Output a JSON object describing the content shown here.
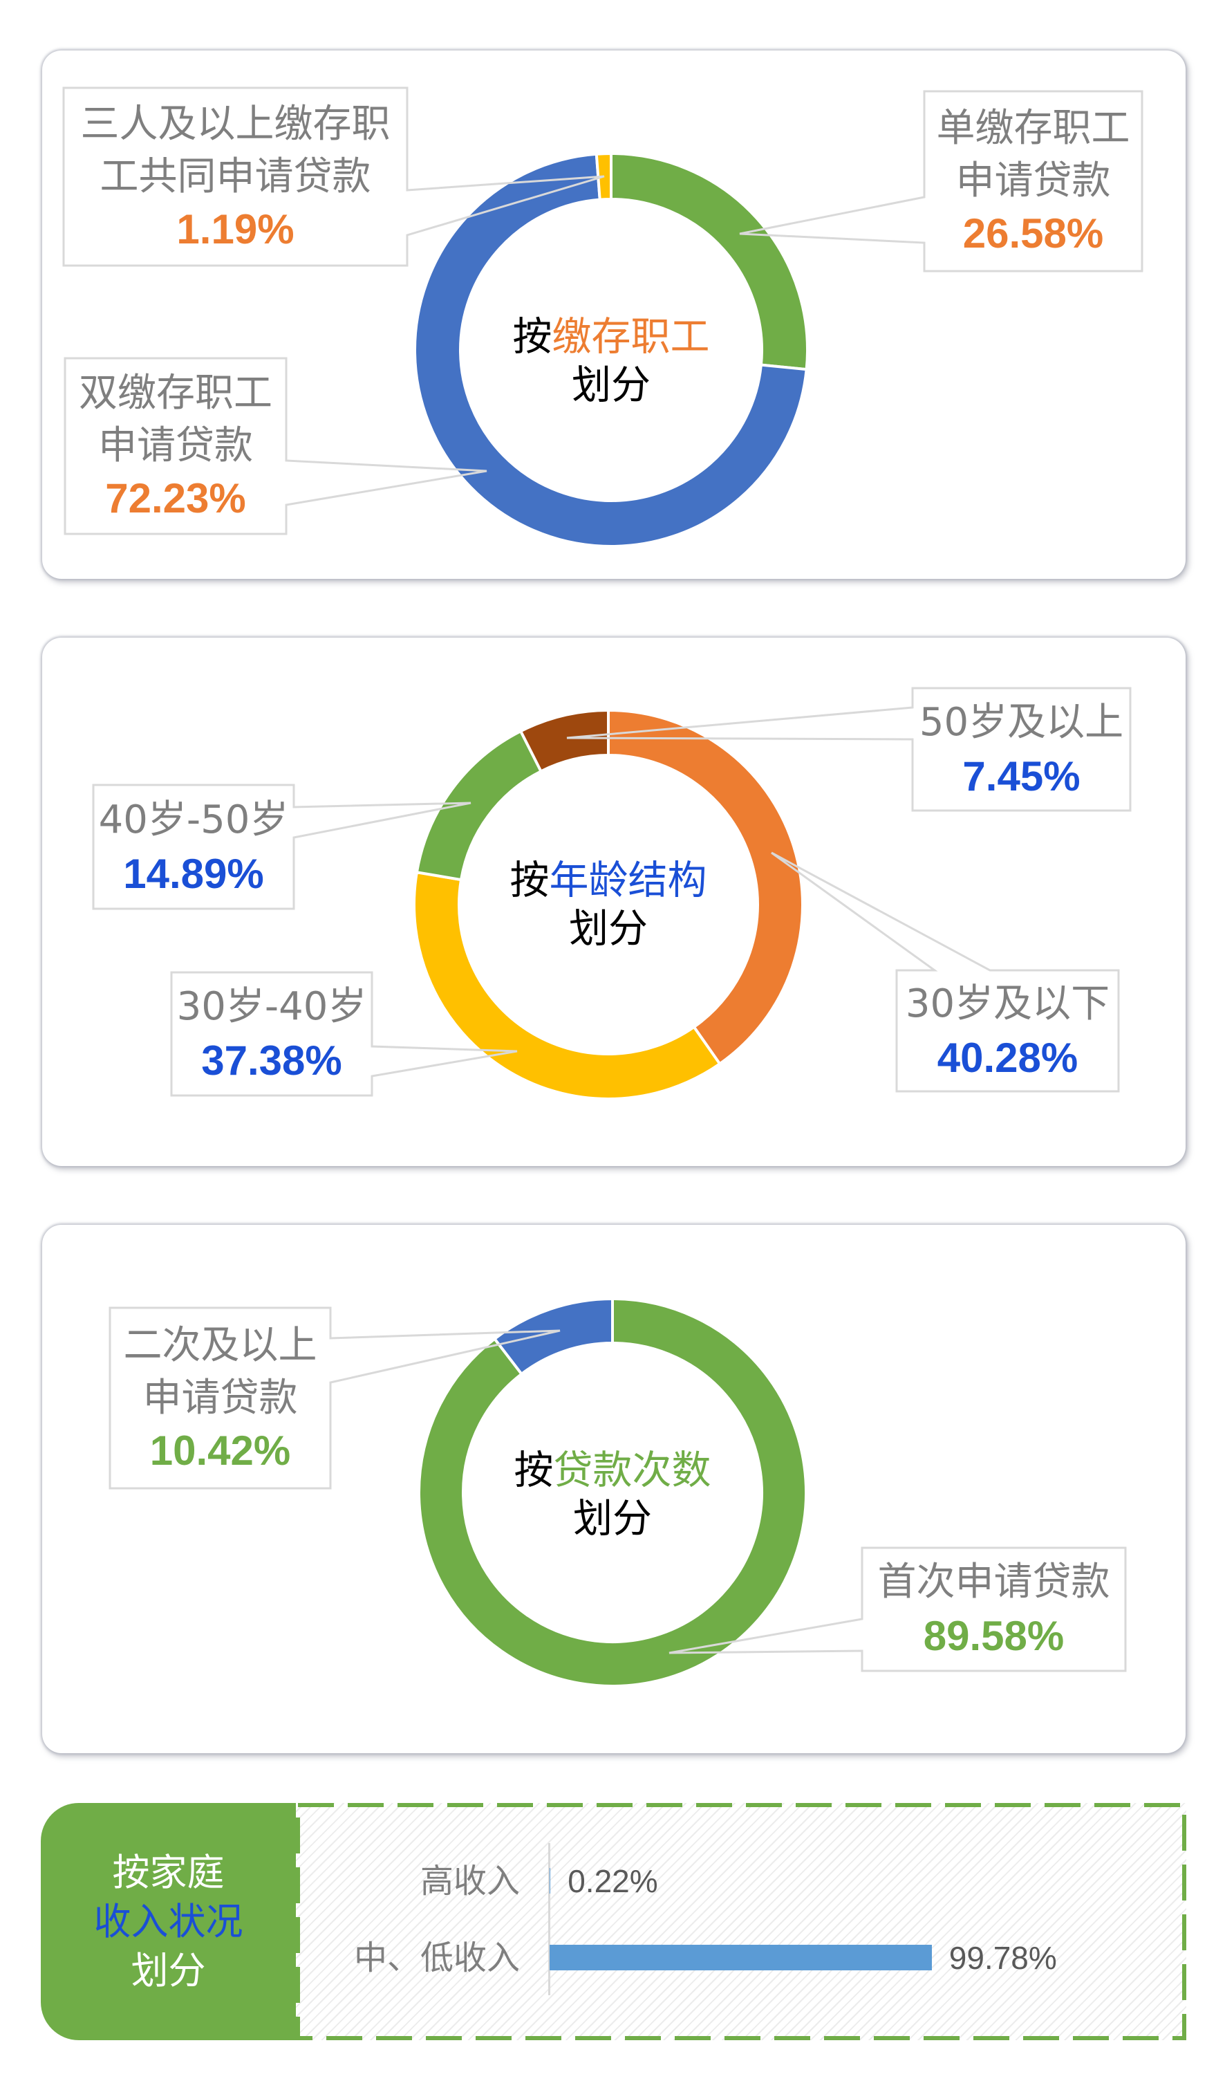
{
  "chart_data": [
    {
      "type": "pie",
      "variant": "donut",
      "title": "按缴存职工划分",
      "title_parts": [
        "按",
        "缴存职工",
        "划分"
      ],
      "categories": [
        "单缴存职工申请贷款",
        "双缴存职工申请贷款",
        "三人及以上缴存职工共同申请贷款"
      ],
      "label_lines": [
        [
          "单缴存职工",
          "申请贷款"
        ],
        [
          "双缴存职工",
          "申请贷款"
        ],
        [
          "三人及以上缴存职",
          "工共同申请贷款"
        ]
      ],
      "values": [
        26.58,
        72.23,
        1.19
      ],
      "value_labels": [
        "26.58%",
        "72.23%",
        "1.19%"
      ],
      "unit": "%",
      "colors": [
        "#70AD47",
        "#4472C4",
        "#FFC000"
      ],
      "accent": "#ED7D31",
      "label_color": "#7F7F7F"
    },
    {
      "type": "pie",
      "variant": "donut",
      "title": "按年龄结构划分",
      "title_parts": [
        "按",
        "年龄结构",
        "划分"
      ],
      "categories": [
        "30岁及以下",
        "30岁-40岁",
        "40岁-50岁",
        "50岁及以上"
      ],
      "label_lines": [
        [
          "30岁及以下"
        ],
        [
          "30岁-40岁"
        ],
        [
          "40岁-50岁"
        ],
        [
          "50岁及以上"
        ]
      ],
      "values": [
        40.28,
        37.38,
        14.89,
        7.45
      ],
      "value_labels": [
        "40.28%",
        "37.38%",
        "14.89%",
        "7.45%"
      ],
      "unit": "%",
      "colors": [
        "#ED7D31",
        "#FFC000",
        "#70AD47",
        "#9E480E"
      ],
      "accent": "#1A4FD6",
      "label_color": "#7F7F7F"
    },
    {
      "type": "pie",
      "variant": "donut",
      "title": "按贷款次数划分",
      "title_parts": [
        "按",
        "贷款次数",
        "划分"
      ],
      "categories": [
        "首次申请贷款",
        "二次及以上申请贷款"
      ],
      "label_lines": [
        [
          "首次申请贷款"
        ],
        [
          "二次及以上",
          "申请贷款"
        ]
      ],
      "values": [
        89.58,
        10.42
      ],
      "value_labels": [
        "89.58%",
        "10.42%"
      ],
      "unit": "%",
      "colors": [
        "#70AD47",
        "#4472C4"
      ],
      "accent": "#70AD47",
      "label_color": "#7F7F7F"
    },
    {
      "type": "bar",
      "orientation": "horizontal",
      "title": "按家庭收入状况划分",
      "title_parts": [
        "按家庭",
        "收入状况",
        "划分"
      ],
      "categories": [
        "高收入",
        "中、低收入"
      ],
      "values": [
        0.22,
        99.78
      ],
      "value_labels": [
        "0.22%",
        "99.78%"
      ],
      "unit": "%",
      "xlim": [
        0,
        100
      ],
      "grid": false,
      "colors": [
        "#5B9BD5"
      ],
      "panel_color": "#70AD47",
      "accent": "#1A4FD6",
      "label_color": "#7F7F7F",
      "value_color": "#595959"
    }
  ]
}
